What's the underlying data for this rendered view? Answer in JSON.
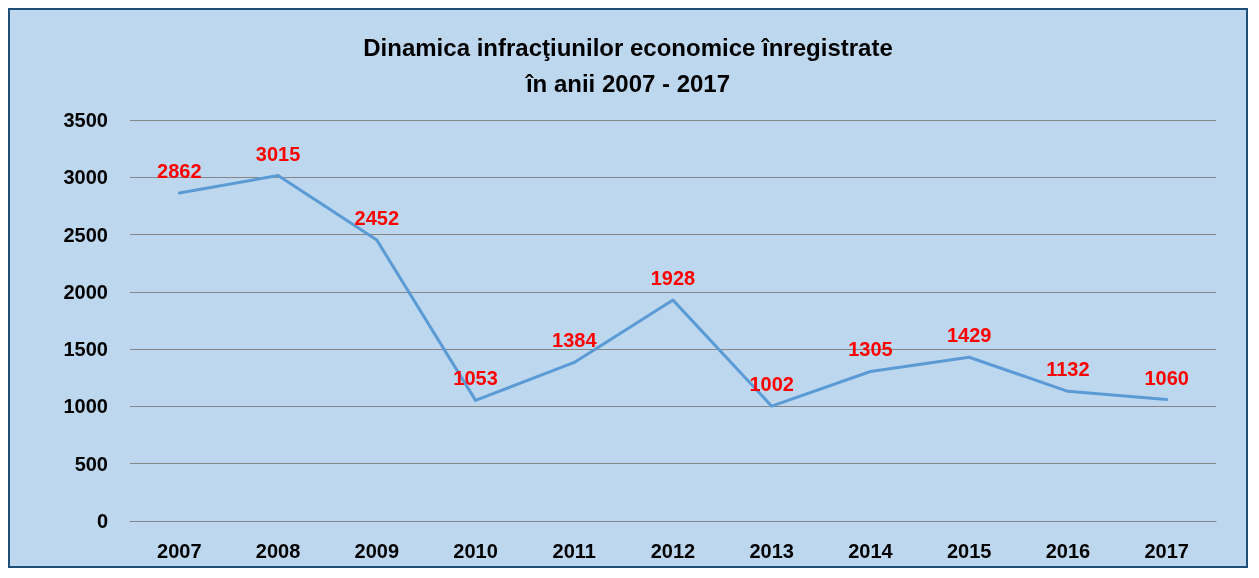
{
  "chart_data": {
    "type": "line",
    "title": "Dinamica infracţiunilor economice înregistrate\nîn anii 2007 - 2017",
    "categories": [
      "2007",
      "2008",
      "2009",
      "2010",
      "2011",
      "2012",
      "2013",
      "2014",
      "2015",
      "2016",
      "2017"
    ],
    "values": [
      2862,
      3015,
      2452,
      1053,
      1384,
      1928,
      1002,
      1305,
      1429,
      1132,
      1060
    ],
    "color": "#5b9bd5",
    "ylim": [
      0,
      3500
    ],
    "yticks": [
      0,
      500,
      1000,
      1500,
      2000,
      2500,
      3000,
      3500
    ],
    "grid": "y",
    "data_labels": true,
    "marker": "none",
    "line_style": "solid"
  }
}
